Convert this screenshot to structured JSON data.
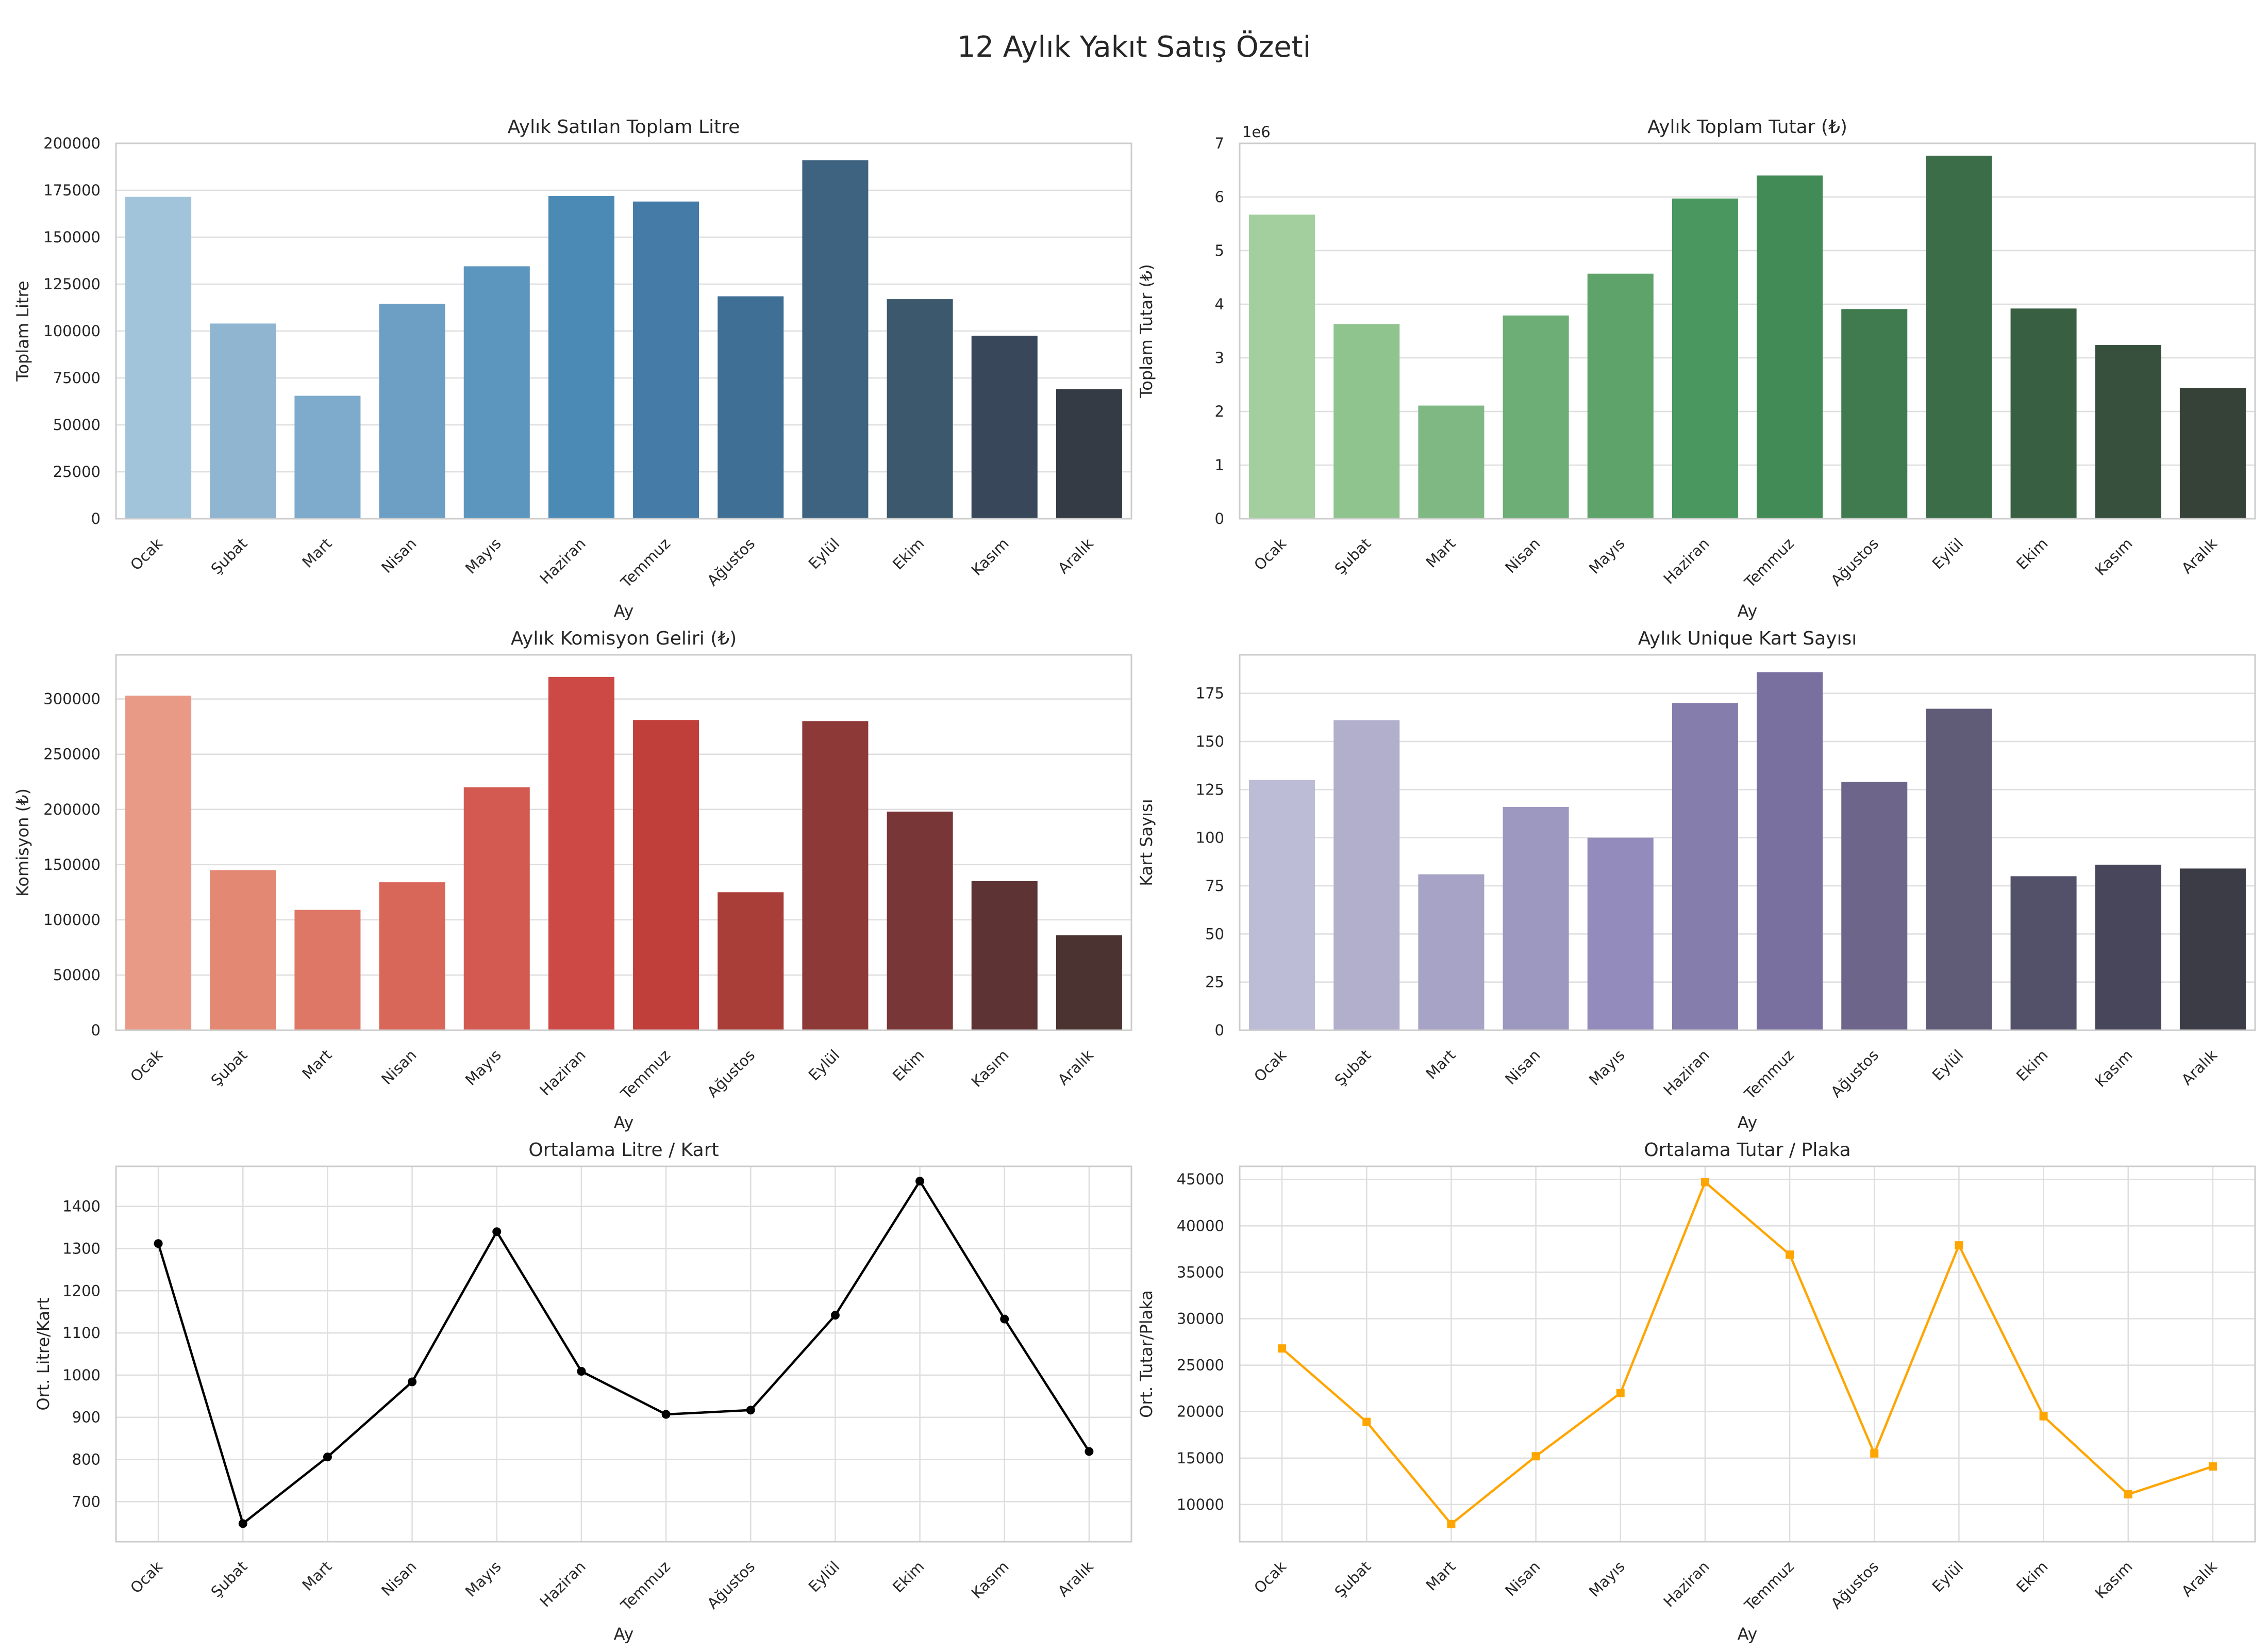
{
  "chart_data": {
    "title": "12 Aylık Yakıt Satış Özeti",
    "panels": [
      {
        "id": "litre",
        "type": "bar",
        "title": "Aylık Satılan Toplam Litre",
        "xlabel": "Ay",
        "ylabel": "Toplam Litre",
        "categories": [
          "Ocak",
          "Şubat",
          "Mart",
          "Nisan",
          "Mayıs",
          "Haziran",
          "Temmuz",
          "Ağustos",
          "Eylül",
          "Ekim",
          "Kasım",
          "Aralık"
        ],
        "values": [
          171500,
          104000,
          65500,
          114500,
          134500,
          172000,
          169000,
          118500,
          191000,
          117000,
          97500,
          69000
        ],
        "ylim": [
          0,
          200000
        ],
        "yticks": [
          0,
          25000,
          50000,
          75000,
          100000,
          125000,
          150000,
          175000,
          200000
        ],
        "ytick_labels": [
          "0",
          "25000",
          "50000",
          "75000",
          "100000",
          "125000",
          "150000",
          "175000",
          "200000"
        ],
        "palette": "Blues_d",
        "colors": [
          "#a2c4da",
          "#8fb5d1",
          "#7eaacb",
          "#6d9fc4",
          "#5c95be",
          "#4c8ab6",
          "#447ba7",
          "#406f96",
          "#3e6380",
          "#3c586c",
          "#38485a",
          "#353b45"
        ]
      },
      {
        "id": "tutar",
        "type": "bar",
        "title": "Aylık Toplam Tutar (₺)",
        "xlabel": "Ay",
        "ylabel": "Toplam Tutar (₺)",
        "offset_text": "1e6",
        "categories": [
          "Ocak",
          "Şubat",
          "Mart",
          "Nisan",
          "Mayıs",
          "Haziran",
          "Temmuz",
          "Ağustos",
          "Eylül",
          "Ekim",
          "Kasım",
          "Aralık"
        ],
        "values": [
          5.67,
          3.63,
          2.11,
          3.79,
          4.57,
          5.97,
          6.4,
          3.91,
          6.77,
          3.92,
          3.24,
          2.44
        ],
        "ylim": [
          0,
          7
        ],
        "yticks": [
          0,
          1,
          2,
          3,
          4,
          5,
          6,
          7
        ],
        "ytick_labels": [
          "0",
          "1",
          "2",
          "3",
          "4",
          "5",
          "6",
          "7"
        ],
        "palette": "Greens_d",
        "colors": [
          "#a3cf9f",
          "#90c48f",
          "#80b884",
          "#6dad76",
          "#5da36a",
          "#4a9760",
          "#428a56",
          "#3f7b4e",
          "#3b6e48",
          "#385f42",
          "#36503d",
          "#364237"
        ]
      },
      {
        "id": "komisyon",
        "type": "bar",
        "title": "Aylık Komisyon Geliri (₺)",
        "xlabel": "Ay",
        "ylabel": "Komisyon (₺)",
        "categories": [
          "Ocak",
          "Şubat",
          "Mart",
          "Nisan",
          "Mayıs",
          "Haziran",
          "Temmuz",
          "Ağustos",
          "Eylül",
          "Ekim",
          "Kasım",
          "Aralık"
        ],
        "values": [
          303000,
          145000,
          109000,
          134000,
          220000,
          320000,
          281000,
          125000,
          280000,
          198000,
          135000,
          86000
        ],
        "ylim": [
          0,
          340000
        ],
        "yticks": [
          0,
          50000,
          100000,
          150000,
          200000,
          250000,
          300000
        ],
        "ytick_labels": [
          "0",
          "50000",
          "100000",
          "150000",
          "200000",
          "250000",
          "300000"
        ],
        "palette": "Reds_d",
        "colors": [
          "#e89a86",
          "#e38872",
          "#df7767",
          "#d8675a",
          "#d35a50",
          "#cd4945",
          "#c03f3b",
          "#a93e39",
          "#8d3937",
          "#793636",
          "#5e3333",
          "#4a3331"
        ]
      },
      {
        "id": "kart",
        "type": "bar",
        "title": "Aylık Unique Kart Sayısı",
        "xlabel": "Ay",
        "ylabel": "Kart Sayısı",
        "categories": [
          "Ocak",
          "Şubat",
          "Mart",
          "Nisan",
          "Mayıs",
          "Haziran",
          "Temmuz",
          "Ağustos",
          "Eylül",
          "Ekim",
          "Kasım",
          "Aralık"
        ],
        "values": [
          130,
          161,
          81,
          116,
          100,
          170,
          186,
          129,
          167,
          80,
          86,
          84
        ],
        "ylim": [
          0,
          195
        ],
        "yticks": [
          0,
          25,
          50,
          75,
          100,
          125,
          150,
          175
        ],
        "ytick_labels": [
          "0",
          "25",
          "50",
          "75",
          "100",
          "125",
          "150",
          "175"
        ],
        "palette": "Purples_d",
        "colors": [
          "#bdbcd6",
          "#b2afcc",
          "#a7a3c6",
          "#9d98c0",
          "#928bbb",
          "#857ead",
          "#7970a0",
          "#6d668a",
          "#605c78",
          "#53516a",
          "#47465a",
          "#3c3c47"
        ]
      },
      {
        "id": "litre_kart",
        "type": "line",
        "title": "Ortalama Litre / Kart",
        "xlabel": "Ay",
        "ylabel": "Ort. Litre/Kart",
        "categories": [
          "Ocak",
          "Şubat",
          "Mart",
          "Nisan",
          "Mayıs",
          "Haziran",
          "Temmuz",
          "Ağustos",
          "Eylül",
          "Ekim",
          "Kasım",
          "Aralık"
        ],
        "values": [
          1312,
          648,
          806,
          984,
          1340,
          1009,
          907,
          917,
          1142,
          1460,
          1133,
          819
        ],
        "ylim": [
          605,
          1495
        ],
        "yticks": [
          700,
          800,
          900,
          1000,
          1100,
          1200,
          1300,
          1400
        ],
        "ytick_labels": [
          "700",
          "800",
          "900",
          "1000",
          "1100",
          "1200",
          "1300",
          "1400"
        ],
        "color": "#000000",
        "marker": "circle",
        "grid_x": true
      },
      {
        "id": "tutar_plaka",
        "type": "line",
        "title": "Ortalama Tutar / Plaka",
        "xlabel": "Ay",
        "ylabel": "Ort. Tutar/Plaka",
        "categories": [
          "Ocak",
          "Şubat",
          "Mart",
          "Nisan",
          "Mayıs",
          "Haziran",
          "Temmuz",
          "Ağustos",
          "Eylül",
          "Ekim",
          "Kasım",
          "Aralık"
        ],
        "values": [
          26800,
          18900,
          7900,
          15200,
          22000,
          44700,
          36900,
          15500,
          37900,
          19500,
          11100,
          14100
        ],
        "ylim": [
          6000,
          46400
        ],
        "yticks": [
          10000,
          15000,
          20000,
          25000,
          30000,
          35000,
          40000,
          45000
        ],
        "ytick_labels": [
          "10000",
          "15000",
          "20000",
          "25000",
          "30000",
          "35000",
          "40000",
          "45000"
        ],
        "color": "#ffa500",
        "marker": "square",
        "grid_x": true
      }
    ]
  }
}
